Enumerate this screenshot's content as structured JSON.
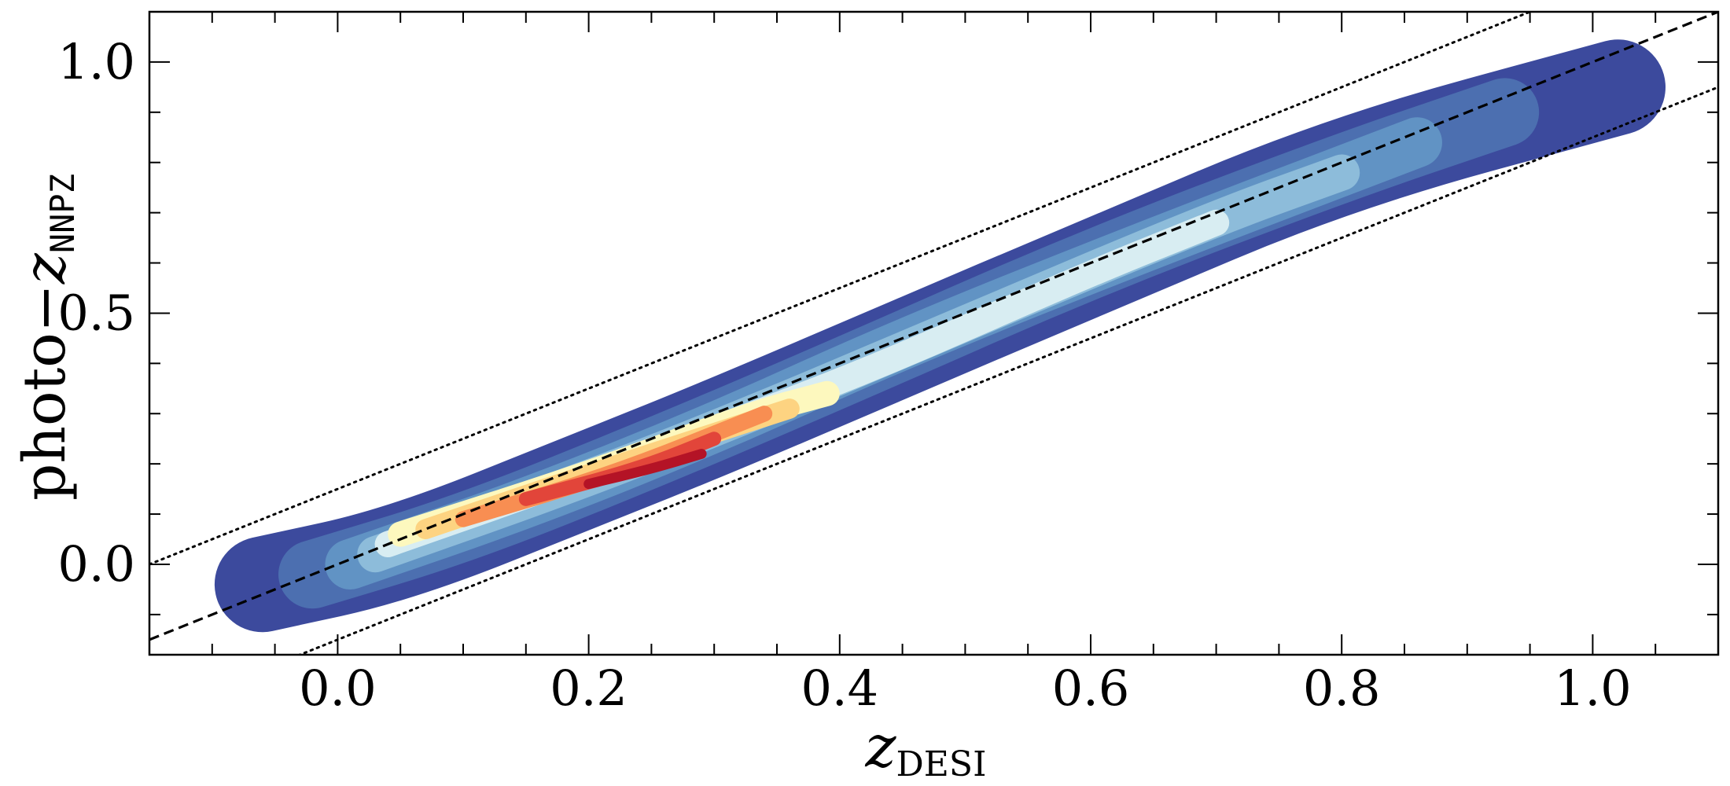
{
  "chart_data": {
    "type": "contour",
    "title": "",
    "xlabel": {
      "main": "z",
      "sub": "DESI"
    },
    "ylabel": {
      "prefix": "photo−",
      "main": "z",
      "sub": "NNPZ"
    },
    "xlim": [
      -0.15,
      1.1
    ],
    "ylim": [
      -0.18,
      1.1
    ],
    "xticks": [
      0.0,
      0.2,
      0.4,
      0.6,
      0.8,
      1.0
    ],
    "xtick_labels": [
      "0.0",
      "0.2",
      "0.4",
      "0.6",
      "0.8",
      "1.0"
    ],
    "yticks": [
      0.0,
      0.5,
      1.0
    ],
    "ytick_labels": [
      "0.0",
      "0.5",
      "1.0"
    ],
    "x_minor_step": 0.05,
    "y_minor_step": 0.1,
    "grid": false,
    "legend": "none",
    "reference_lines": [
      {
        "name": "one-to-one",
        "style": "dashed",
        "slope": 1,
        "intercept": 0
      },
      {
        "name": "upper-bound",
        "style": "dotted",
        "slope": 1,
        "intercept": 0.15
      },
      {
        "name": "lower-bound",
        "style": "dotted",
        "slope": 1,
        "intercept": -0.15
      }
    ],
    "density_levels": [
      {
        "level": 1,
        "color": "#3c4a9d",
        "ridge": [
          [
            -0.06,
            -0.04
          ],
          [
            0.05,
            0.02
          ],
          [
            0.2,
            0.17
          ],
          [
            0.3,
            0.27
          ],
          [
            0.45,
            0.43
          ],
          [
            0.6,
            0.59
          ],
          [
            0.8,
            0.8
          ],
          [
            1.02,
            0.95
          ]
        ],
        "half_width": 0.095
      },
      {
        "level": 2,
        "color": "#4c6fb0",
        "ridge": [
          [
            -0.02,
            -0.02
          ],
          [
            0.1,
            0.07
          ],
          [
            0.25,
            0.22
          ],
          [
            0.4,
            0.38
          ],
          [
            0.6,
            0.6
          ],
          [
            0.8,
            0.79
          ],
          [
            0.93,
            0.9
          ]
        ],
        "half_width": 0.068
      },
      {
        "level": 3,
        "color": "#6193c4",
        "ridge": [
          [
            0.01,
            0.0
          ],
          [
            0.15,
            0.12
          ],
          [
            0.3,
            0.27
          ],
          [
            0.45,
            0.44
          ],
          [
            0.65,
            0.64
          ],
          [
            0.86,
            0.84
          ]
        ],
        "half_width": 0.05
      },
      {
        "level": 4,
        "color": "#8dbcda",
        "ridge": [
          [
            0.03,
            0.02
          ],
          [
            0.2,
            0.17
          ],
          [
            0.35,
            0.32
          ],
          [
            0.5,
            0.48
          ],
          [
            0.7,
            0.69
          ],
          [
            0.8,
            0.78
          ]
        ],
        "half_width": 0.036
      },
      {
        "level": 5,
        "color": "#d8edf2",
        "ridge": [
          [
            0.04,
            0.04
          ],
          [
            0.2,
            0.18
          ],
          [
            0.4,
            0.36
          ],
          [
            0.6,
            0.58
          ],
          [
            0.7,
            0.68
          ]
        ],
        "half_width": 0.026
      },
      {
        "level": 6,
        "color": "#fdf8be",
        "ridge": [
          [
            0.05,
            0.06
          ],
          [
            0.2,
            0.18
          ],
          [
            0.33,
            0.3
          ],
          [
            0.39,
            0.34
          ]
        ],
        "half_width": 0.025
      },
      {
        "level": 7,
        "color": "#fdd381",
        "ridge": [
          [
            0.07,
            0.07
          ],
          [
            0.2,
            0.18
          ],
          [
            0.36,
            0.31
          ]
        ],
        "half_width": 0.02
      },
      {
        "level": 8,
        "color": "#f88e52",
        "ridge": [
          [
            0.1,
            0.09
          ],
          [
            0.22,
            0.18
          ],
          [
            0.34,
            0.3
          ]
        ],
        "half_width": 0.016
      },
      {
        "level": 9,
        "color": "#e2453a",
        "ridge": [
          [
            0.15,
            0.13
          ],
          [
            0.24,
            0.19
          ],
          [
            0.3,
            0.25
          ]
        ],
        "half_width": 0.014
      },
      {
        "level": 10,
        "color": "#b41326",
        "ridge": [
          [
            0.2,
            0.16
          ],
          [
            0.25,
            0.19
          ],
          [
            0.29,
            0.22
          ]
        ],
        "half_width": 0.01
      }
    ]
  }
}
